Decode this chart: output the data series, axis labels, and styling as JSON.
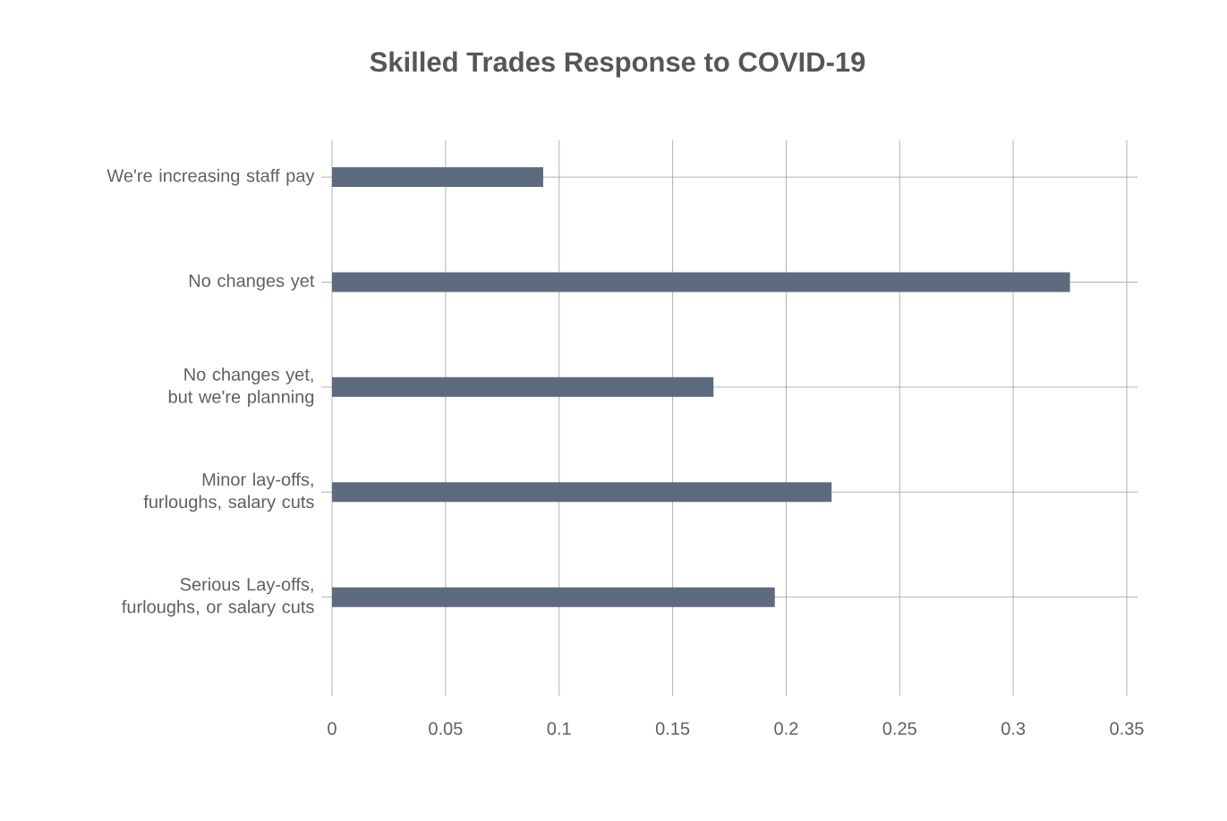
{
  "chart_data": {
    "type": "bar",
    "orientation": "horizontal",
    "title": "Skilled Trades Response to COVID-19",
    "categories": [
      "We're increasing staff pay",
      "No changes yet",
      "No changes yet, but we're planning",
      "Minor lay-offs, furloughs, salary cuts",
      "Serious Lay-offs, furloughs, or salary cuts"
    ],
    "values": [
      0.093,
      0.325,
      0.168,
      0.22,
      0.195
    ],
    "color": "#5c6b7e",
    "xlim": [
      0,
      0.35
    ],
    "xticks": [
      0,
      0.05,
      0.1,
      0.15,
      0.2,
      0.25,
      0.3,
      0.35
    ],
    "grid": true
  }
}
